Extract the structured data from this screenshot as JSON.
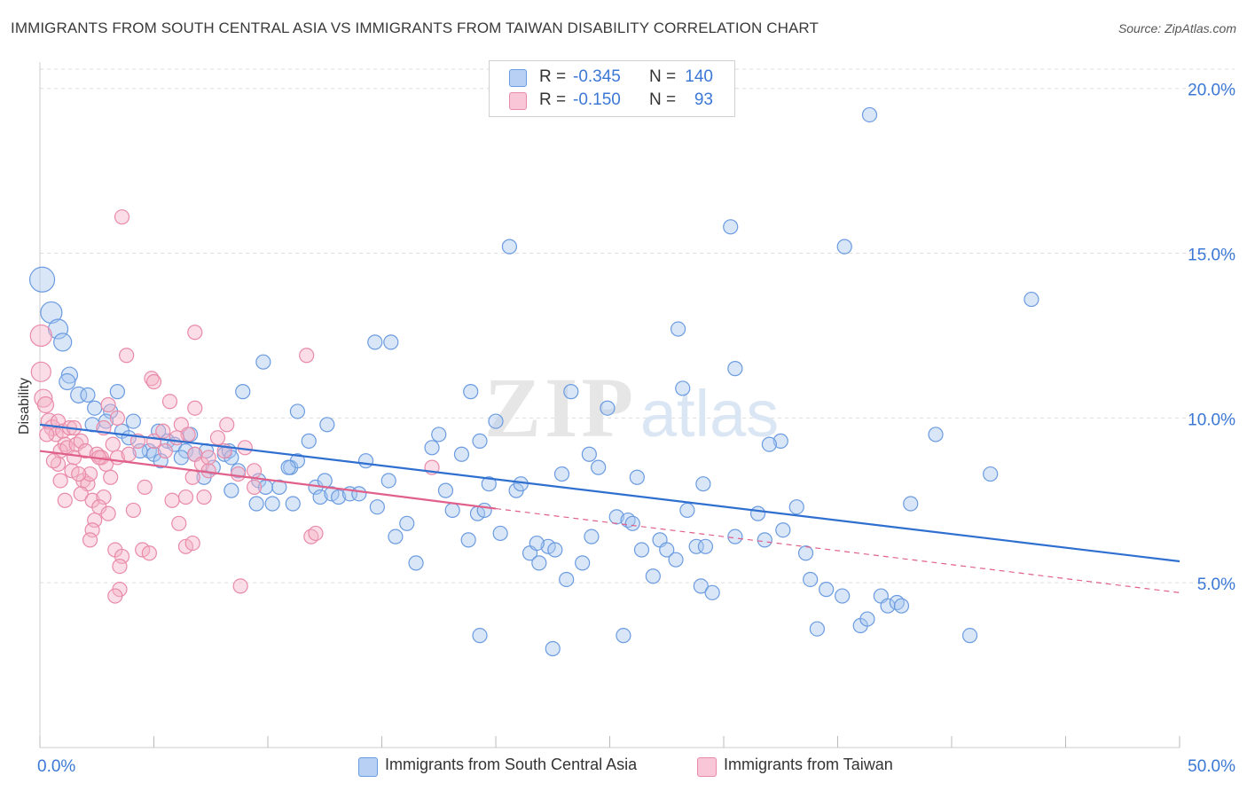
{
  "title": "IMMIGRANTS FROM SOUTH CENTRAL ASIA VS IMMIGRANTS FROM TAIWAN DISABILITY CORRELATION CHART",
  "source": "Source: ZipAtlas.com",
  "watermark": {
    "zip": "ZIP",
    "atlas": "atlas"
  },
  "legend": {
    "rows": [
      {
        "r_label": "R =",
        "r_value": "-0.345",
        "n_label": "N =",
        "n_value": "140"
      },
      {
        "r_label": "R =",
        "r_value": "-0.150",
        "n_label": "N =",
        "n_value": "93"
      }
    ]
  },
  "bottom_legend": {
    "blue": "Immigrants from South Central Asia",
    "pink": "Immigrants from Taiwan"
  },
  "colors": {
    "blue_fill": "#a9c7f0",
    "blue_stroke": "#6b9be0",
    "blue_line": "#2f6fd0",
    "pink_fill": "#f5b3c8",
    "pink_stroke": "#e98aa9",
    "pink_line": "#e0608a",
    "axis_text": "#3b78d6",
    "grid": "#dddddd"
  },
  "chart_data": {
    "type": "scatter",
    "title": "IMMIGRANTS FROM SOUTH CENTRAL ASIA VS IMMIGRANTS FROM TAIWAN DISABILITY CORRELATION CHART",
    "xlabel": "",
    "ylabel": "Disability",
    "xlim": [
      0,
      50
    ],
    "ylim": [
      0,
      20.8
    ],
    "x_tick_labels": [
      "0.0%",
      "50.0%"
    ],
    "y_ticks": [
      5,
      10,
      15,
      20
    ],
    "y_tick_labels": [
      "5.0%",
      "10.0%",
      "15.0%",
      "20.0%"
    ],
    "grid": true,
    "legend_position": "top-center",
    "series": [
      {
        "name": "Immigrants from South Central Asia",
        "color": "blue",
        "trend": {
          "x": [
            0,
            50
          ],
          "y": [
            9.8,
            5.65
          ],
          "dashed": false
        },
        "points": [
          [
            0.1,
            14.2,
            14
          ],
          [
            0.5,
            13.2,
            12
          ],
          [
            0.8,
            12.7,
            11
          ],
          [
            1.0,
            12.3,
            10
          ],
          [
            1.3,
            11.3,
            9
          ],
          [
            1.2,
            11.1,
            9
          ],
          [
            1.7,
            10.7,
            9
          ],
          [
            2.1,
            10.7,
            8
          ],
          [
            3.4,
            10.8,
            8
          ],
          [
            2.4,
            10.3,
            8
          ],
          [
            3.1,
            10.2,
            8
          ],
          [
            2.3,
            9.8,
            8
          ],
          [
            2.9,
            9.9,
            8
          ],
          [
            3.6,
            9.6,
            8
          ],
          [
            4.1,
            9.9,
            8
          ],
          [
            3.9,
            9.4,
            8
          ],
          [
            4.8,
            9.0,
            8
          ],
          [
            5.0,
            8.9,
            8
          ],
          [
            5.2,
            9.6,
            8
          ],
          [
            5.6,
            9.3,
            8
          ],
          [
            5.9,
            9.2,
            8
          ],
          [
            6.4,
            9.0,
            8
          ],
          [
            6.6,
            9.5,
            8
          ],
          [
            6.8,
            8.9,
            8
          ],
          [
            7.3,
            9.0,
            8
          ],
          [
            7.6,
            8.5,
            8
          ],
          [
            8.1,
            8.9,
            8
          ],
          [
            8.3,
            9.0,
            8
          ],
          [
            8.4,
            8.8,
            8
          ],
          [
            8.7,
            8.4,
            8
          ],
          [
            7.2,
            8.2,
            8
          ],
          [
            8.4,
            7.8,
            8
          ],
          [
            9.5,
            7.4,
            8
          ],
          [
            9.6,
            8.1,
            8
          ],
          [
            9.9,
            7.9,
            8
          ],
          [
            10.2,
            7.4,
            8
          ],
          [
            10.5,
            7.9,
            8
          ],
          [
            11.0,
            8.5,
            8
          ],
          [
            11.3,
            8.7,
            8
          ],
          [
            11.8,
            9.3,
            8
          ],
          [
            12.1,
            7.9,
            8
          ],
          [
            12.3,
            7.6,
            8
          ],
          [
            12.5,
            8.1,
            8
          ],
          [
            12.8,
            7.7,
            8
          ],
          [
            13.1,
            7.6,
            8
          ],
          [
            13.6,
            7.7,
            8
          ],
          [
            14.0,
            7.7,
            8
          ],
          [
            14.3,
            8.7,
            8
          ],
          [
            14.8,
            7.3,
            8
          ],
          [
            15.3,
            8.1,
            8
          ],
          [
            15.6,
            6.4,
            8
          ],
          [
            16.5,
            5.6,
            8
          ],
          [
            16.1,
            6.8,
            8
          ],
          [
            17.2,
            9.1,
            8
          ],
          [
            17.8,
            7.8,
            8
          ],
          [
            18.1,
            7.2,
            8
          ],
          [
            18.5,
            8.9,
            8
          ],
          [
            18.8,
            6.3,
            8
          ],
          [
            19.2,
            7.1,
            8
          ],
          [
            19.5,
            7.2,
            8
          ],
          [
            19.7,
            8.0,
            8
          ],
          [
            20.2,
            6.5,
            8
          ],
          [
            20.9,
            7.8,
            8
          ],
          [
            21.1,
            8.0,
            8
          ],
          [
            21.5,
            5.9,
            8
          ],
          [
            21.9,
            5.6,
            8
          ],
          [
            22.3,
            6.1,
            8
          ],
          [
            22.6,
            6.0,
            8
          ],
          [
            22.9,
            8.3,
            8
          ],
          [
            23.1,
            5.1,
            8
          ],
          [
            23.8,
            5.6,
            8
          ],
          [
            24.2,
            6.4,
            8
          ],
          [
            24.5,
            8.5,
            8
          ],
          [
            25.3,
            7.0,
            8
          ],
          [
            25.8,
            6.9,
            8
          ],
          [
            26.4,
            6.0,
            8
          ],
          [
            26.9,
            5.2,
            8
          ],
          [
            27.2,
            6.3,
            8
          ],
          [
            27.5,
            6.0,
            8
          ],
          [
            27.9,
            5.7,
            8
          ],
          [
            28.4,
            7.2,
            8
          ],
          [
            28.8,
            6.1,
            8
          ],
          [
            29.0,
            4.9,
            8
          ],
          [
            29.2,
            6.1,
            8
          ],
          [
            29.5,
            4.7,
            8
          ],
          [
            31.8,
            6.3,
            8
          ],
          [
            32.6,
            6.6,
            8
          ],
          [
            30.5,
            6.4,
            8
          ],
          [
            31.5,
            7.1,
            8
          ],
          [
            33.2,
            7.3,
            8
          ],
          [
            33.6,
            5.9,
            8
          ],
          [
            34.1,
            3.6,
            8
          ],
          [
            35.2,
            4.6,
            8
          ],
          [
            36.0,
            3.7,
            8
          ],
          [
            36.3,
            3.9,
            8
          ],
          [
            36.9,
            4.6,
            8
          ],
          [
            37.2,
            4.3,
            8
          ],
          [
            37.6,
            4.4,
            8
          ],
          [
            37.8,
            4.3,
            8
          ],
          [
            38.2,
            7.4,
            8
          ],
          [
            39.3,
            9.5,
            8
          ],
          [
            40.8,
            3.4,
            8
          ],
          [
            41.7,
            8.3,
            8
          ],
          [
            43.5,
            13.6,
            8
          ],
          [
            36.4,
            19.2,
            8
          ],
          [
            30.3,
            15.8,
            8
          ],
          [
            35.3,
            15.2,
            8
          ],
          [
            20.6,
            15.2,
            8
          ],
          [
            28.0,
            12.7,
            8
          ],
          [
            30.5,
            11.5,
            8
          ],
          [
            14.7,
            12.3,
            8
          ],
          [
            15.4,
            12.3,
            8
          ],
          [
            9.8,
            11.7,
            8
          ],
          [
            8.9,
            10.8,
            8
          ],
          [
            11.3,
            10.2,
            8
          ],
          [
            12.6,
            9.8,
            8
          ],
          [
            17.5,
            9.5,
            8
          ],
          [
            18.9,
            10.8,
            8
          ],
          [
            19.3,
            9.3,
            8
          ],
          [
            20.0,
            9.9,
            8
          ],
          [
            23.3,
            10.8,
            8
          ],
          [
            24.9,
            10.3,
            8
          ],
          [
            24.1,
            8.9,
            8
          ],
          [
            28.2,
            10.9,
            8
          ],
          [
            29.1,
            8.0,
            8
          ],
          [
            32.5,
            9.3,
            8
          ],
          [
            26.0,
            6.8,
            8
          ],
          [
            6.2,
            8.8,
            8
          ],
          [
            4.4,
            9.0,
            8
          ],
          [
            5.3,
            8.7,
            8
          ],
          [
            10.9,
            8.5,
            8
          ],
          [
            11.1,
            7.4,
            8
          ],
          [
            21.8,
            6.2,
            8
          ],
          [
            25.6,
            3.4,
            8
          ],
          [
            19.3,
            3.4,
            8
          ],
          [
            22.5,
            3.0,
            8
          ],
          [
            33.8,
            5.1,
            8
          ],
          [
            34.5,
            4.8,
            8
          ],
          [
            26.2,
            8.2,
            8
          ],
          [
            32.0,
            9.2,
            8
          ]
        ]
      },
      {
        "name": "Immigrants from Taiwan",
        "color": "pink",
        "trend": {
          "x": [
            0,
            20
          ],
          "y": [
            9.0,
            7.25
          ],
          "dashed": false,
          "extended": {
            "x": [
              20,
              50
            ],
            "y": [
              7.25,
              4.7
            ]
          }
        },
        "points": [
          [
            0.05,
            12.5,
            12
          ],
          [
            0.05,
            11.4,
            11
          ],
          [
            0.15,
            10.6,
            10
          ],
          [
            0.25,
            10.4,
            9
          ],
          [
            0.4,
            9.9,
            9
          ],
          [
            0.55,
            9.7,
            9
          ],
          [
            0.7,
            9.5,
            8
          ],
          [
            0.8,
            9.9,
            8
          ],
          [
            1.0,
            9.6,
            8
          ],
          [
            1.1,
            9.2,
            8
          ],
          [
            0.9,
            9.0,
            8
          ],
          [
            1.3,
            9.7,
            8
          ],
          [
            1.2,
            9.1,
            8
          ],
          [
            1.5,
            8.8,
            8
          ],
          [
            1.6,
            9.2,
            8
          ],
          [
            0.8,
            8.6,
            8
          ],
          [
            1.8,
            9.3,
            8
          ],
          [
            2.0,
            9.0,
            8
          ],
          [
            1.4,
            8.4,
            8
          ],
          [
            1.9,
            8.1,
            8
          ],
          [
            2.1,
            8.0,
            8
          ],
          [
            1.8,
            7.7,
            8
          ],
          [
            1.1,
            7.5,
            8
          ],
          [
            2.3,
            7.5,
            8
          ],
          [
            2.5,
            8.9,
            8
          ],
          [
            2.7,
            8.8,
            8
          ],
          [
            2.9,
            8.6,
            8
          ],
          [
            3.2,
            9.2,
            8
          ],
          [
            3.4,
            8.8,
            8
          ],
          [
            3.1,
            8.2,
            8
          ],
          [
            2.8,
            7.6,
            8
          ],
          [
            2.6,
            7.3,
            8
          ],
          [
            3.0,
            7.1,
            8
          ],
          [
            2.4,
            6.9,
            8
          ],
          [
            2.3,
            6.6,
            8
          ],
          [
            2.2,
            6.3,
            8
          ],
          [
            3.3,
            6.0,
            8
          ],
          [
            3.6,
            5.8,
            8
          ],
          [
            3.5,
            5.5,
            8
          ],
          [
            4.5,
            6.0,
            8
          ],
          [
            4.8,
            5.9,
            8
          ],
          [
            4.1,
            7.2,
            8
          ],
          [
            4.6,
            7.9,
            8
          ],
          [
            5.0,
            9.3,
            8
          ],
          [
            5.4,
            9.6,
            8
          ],
          [
            5.7,
            10.5,
            8
          ],
          [
            4.9,
            11.2,
            8
          ],
          [
            5.0,
            11.1,
            8
          ],
          [
            3.8,
            11.9,
            8
          ],
          [
            3.0,
            10.4,
            8
          ],
          [
            3.4,
            10.0,
            8
          ],
          [
            6.2,
            9.8,
            8
          ],
          [
            6.5,
            9.5,
            8
          ],
          [
            6.8,
            8.9,
            8
          ],
          [
            7.1,
            8.6,
            8
          ],
          [
            7.4,
            8.4,
            8
          ],
          [
            8.1,
            9.0,
            8
          ],
          [
            8.7,
            8.3,
            8
          ],
          [
            9.4,
            8.4,
            8
          ],
          [
            9.0,
            9.1,
            8
          ],
          [
            6.7,
            8.2,
            8
          ],
          [
            6.4,
            7.6,
            8
          ],
          [
            5.8,
            7.5,
            8
          ],
          [
            6.1,
            6.8,
            8
          ],
          [
            6.4,
            6.1,
            8
          ],
          [
            6.7,
            6.2,
            8
          ],
          [
            7.2,
            7.6,
            8
          ],
          [
            7.4,
            8.8,
            8
          ],
          [
            8.2,
            9.8,
            8
          ],
          [
            6.8,
            10.3,
            8
          ],
          [
            6.8,
            12.6,
            8
          ],
          [
            11.7,
            11.9,
            8
          ],
          [
            11.9,
            6.4,
            8
          ],
          [
            12.1,
            6.5,
            8
          ],
          [
            9.4,
            7.9,
            8
          ],
          [
            8.8,
            4.9,
            8
          ],
          [
            3.5,
            4.8,
            8
          ],
          [
            3.3,
            4.6,
            8
          ],
          [
            17.2,
            8.5,
            8
          ],
          [
            3.6,
            16.1,
            8
          ],
          [
            1.5,
            9.7,
            8
          ],
          [
            0.3,
            9.5,
            8
          ],
          [
            0.6,
            8.7,
            8
          ],
          [
            2.2,
            8.3,
            8
          ],
          [
            2.8,
            9.7,
            8
          ],
          [
            3.9,
            8.9,
            8
          ],
          [
            4.3,
            9.3,
            8
          ],
          [
            5.5,
            9.0,
            8
          ],
          [
            6.0,
            9.4,
            8
          ],
          [
            7.8,
            9.4,
            8
          ],
          [
            0.9,
            8.1,
            8
          ],
          [
            1.7,
            8.3,
            8
          ],
          [
            2.6,
            8.8,
            8
          ]
        ]
      }
    ]
  }
}
